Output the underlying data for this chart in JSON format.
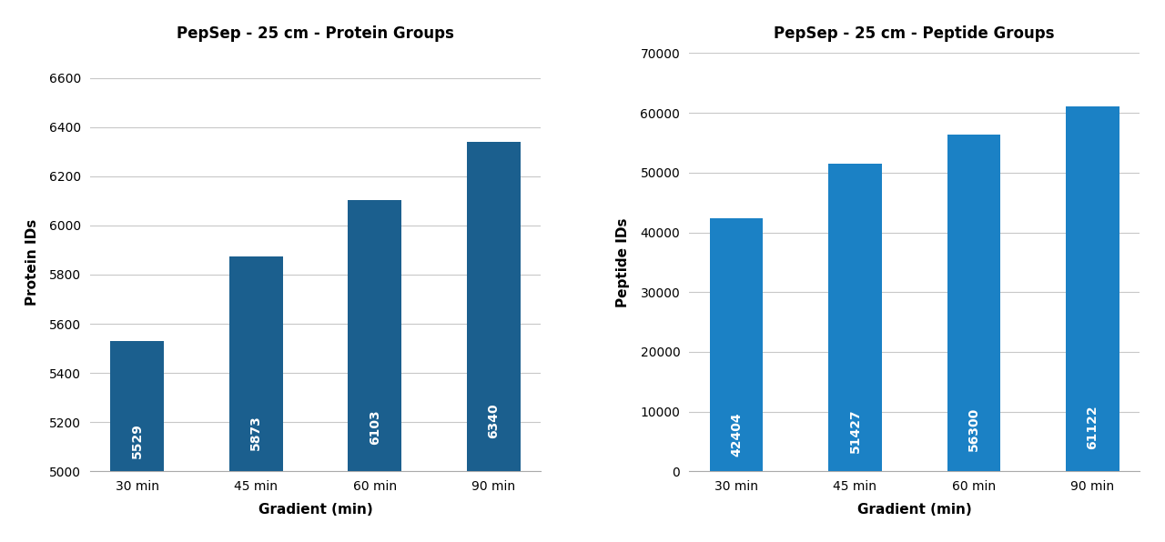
{
  "left": {
    "title": "PepSep - 25 cm - Protein Groups",
    "categories": [
      "30 min",
      "45 min",
      "60 min",
      "90 min"
    ],
    "values": [
      5529,
      5873,
      6103,
      6340
    ],
    "bar_color": "#1b5f8e",
    "ylabel": "Protein IDs",
    "xlabel": "Gradient (min)",
    "ylim": [
      5000,
      6700
    ],
    "yticks": [
      5000,
      5200,
      5400,
      5600,
      5800,
      6000,
      6200,
      6400,
      6600
    ]
  },
  "right": {
    "title": "PepSep - 25 cm - Peptide Groups",
    "categories": [
      "30 min",
      "45 min",
      "60 min",
      "90 min"
    ],
    "values": [
      42404,
      51427,
      56300,
      61122
    ],
    "bar_color": "#1b81c5",
    "ylabel": "Peptide IDs",
    "xlabel": "Gradient (min)",
    "ylim": [
      0,
      70000
    ],
    "yticks": [
      0,
      10000,
      20000,
      30000,
      40000,
      50000,
      60000,
      70000
    ]
  },
  "label_fontsize": 10,
  "title_fontsize": 12,
  "axis_label_fontsize": 11,
  "bar_label_fontsize": 10,
  "background_color": "#ffffff",
  "grid_color": "#c8c8c8",
  "text_color": "#ffffff"
}
